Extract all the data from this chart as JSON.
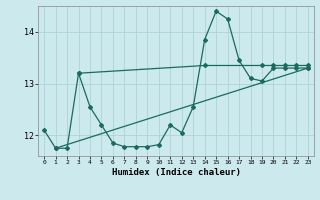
{
  "title": "",
  "xlabel": "Humidex (Indice chaleur)",
  "ylabel": "",
  "background_color": "#cce9ed",
  "line_color": "#1a6b5e",
  "xlim": [
    -0.5,
    23.5
  ],
  "ylim": [
    11.6,
    14.5
  ],
  "yticks": [
    12,
    13,
    14
  ],
  "xticks": [
    0,
    1,
    2,
    3,
    4,
    5,
    6,
    7,
    8,
    9,
    10,
    11,
    12,
    13,
    14,
    15,
    16,
    17,
    18,
    19,
    20,
    21,
    22,
    23
  ],
  "series1_x": [
    0,
    1,
    2,
    3,
    4,
    5,
    6,
    7,
    8,
    9,
    10,
    11,
    12,
    13,
    14,
    15,
    16,
    17,
    18,
    19,
    20,
    21,
    22,
    23
  ],
  "series1_y": [
    12.1,
    11.75,
    11.75,
    13.2,
    12.55,
    12.2,
    11.85,
    11.78,
    11.78,
    11.78,
    11.82,
    12.2,
    12.05,
    12.55,
    13.85,
    14.4,
    14.25,
    13.45,
    13.1,
    13.05,
    13.3,
    13.3,
    13.3,
    13.3
  ],
  "series2_x": [
    3,
    14,
    19,
    20,
    21,
    22,
    23
  ],
  "series2_y": [
    13.2,
    13.35,
    13.35,
    13.35,
    13.35,
    13.35,
    13.35
  ],
  "series3_x": [
    1,
    23
  ],
  "series3_y": [
    11.75,
    13.3
  ]
}
